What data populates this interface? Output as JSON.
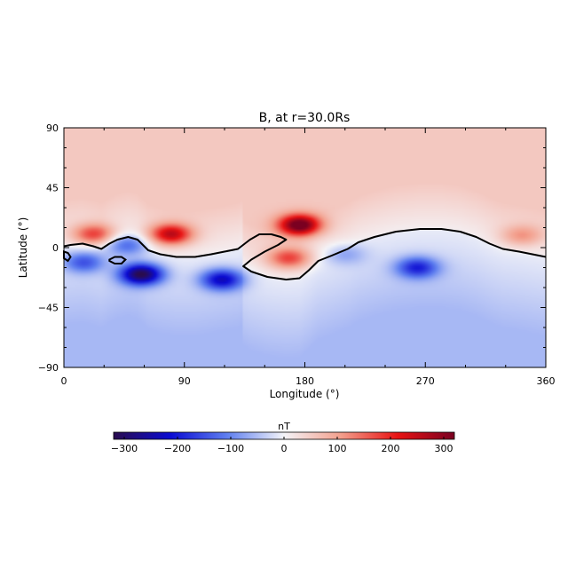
{
  "chart_data": {
    "type": "heatmap",
    "title": "B, at r=30.0Rs",
    "xlabel": "Longitude (°)",
    "ylabel": "Latitude (°)",
    "xlim": [
      0,
      360
    ],
    "ylim": [
      -90,
      90
    ],
    "xticks": [
      "0",
      "90",
      "180",
      "270",
      "360"
    ],
    "xtick_values": [
      0,
      90,
      180,
      270,
      360
    ],
    "yticks": [
      "90",
      "45",
      "0",
      "−45",
      "−90"
    ],
    "ytick_values": [
      90,
      45,
      0,
      -45,
      -90
    ],
    "colorbar": {
      "label": "nT",
      "range": [
        -320,
        320
      ],
      "ticks": [
        "−300",
        "−200",
        "−100",
        "0",
        "100",
        "200",
        "300"
      ],
      "tick_values": [
        -300,
        -200,
        -100,
        0,
        100,
        200,
        300
      ],
      "colormap": [
        "#2a0c4e",
        "#0b0bd2",
        "#5f7ff0",
        "#f4f4f8",
        "#f39f8c",
        "#e81313",
        "#7a0021"
      ]
    },
    "background": {
      "north": 55,
      "south": -55
    },
    "features": [
      {
        "lon": 22,
        "lat": 10,
        "value": 160
      },
      {
        "lon": 80,
        "lat": 10,
        "value": 230
      },
      {
        "lon": 176,
        "lat": 17,
        "value": 300
      },
      {
        "lon": 168,
        "lat": -8,
        "value": 150
      },
      {
        "lon": 342,
        "lat": 9,
        "value": 90
      },
      {
        "lon": 58,
        "lat": -20,
        "value": -300
      },
      {
        "lon": 15,
        "lat": -11,
        "value": -130
      },
      {
        "lon": 47,
        "lat": 2,
        "value": -110
      },
      {
        "lon": 118,
        "lat": -24,
        "value": -210
      },
      {
        "lon": 264,
        "lat": -15,
        "value": -170
      },
      {
        "lon": 210,
        "lat": -5,
        "value": -60
      }
    ],
    "zero_contour": [
      [
        0,
        1
      ],
      [
        5,
        2
      ],
      [
        14,
        3
      ],
      [
        22,
        1
      ],
      [
        28,
        -1
      ],
      [
        34,
        3
      ],
      [
        40,
        6
      ],
      [
        48,
        8
      ],
      [
        55,
        6
      ],
      [
        63,
        -2
      ],
      [
        72,
        -5
      ],
      [
        84,
        -7
      ],
      [
        98,
        -7
      ],
      [
        110,
        -5
      ],
      [
        120,
        -3
      ],
      [
        130,
        -1
      ],
      [
        139,
        6
      ],
      [
        146,
        10
      ],
      [
        155,
        10
      ],
      [
        162,
        8
      ],
      [
        166,
        6
      ],
      [
        160,
        2
      ],
      [
        150,
        -3
      ],
      [
        140,
        -9
      ],
      [
        134,
        -14
      ],
      [
        140,
        -18
      ],
      [
        152,
        -22
      ],
      [
        166,
        -24
      ],
      [
        176,
        -23
      ],
      [
        183,
        -17
      ],
      [
        190,
        -10
      ],
      [
        200,
        -6
      ],
      [
        212,
        -1
      ],
      [
        220,
        4
      ],
      [
        232,
        8
      ],
      [
        248,
        12
      ],
      [
        266,
        14
      ],
      [
        282,
        14
      ],
      [
        296,
        12
      ],
      [
        308,
        8
      ],
      [
        318,
        3
      ],
      [
        328,
        -1
      ],
      [
        340,
        -3
      ],
      [
        350,
        -5
      ],
      [
        360,
        -7
      ]
    ],
    "zero_contour_islands": [
      [
        [
          34,
          -9
        ],
        [
          38,
          -7
        ],
        [
          43,
          -7
        ],
        [
          46,
          -9
        ],
        [
          43,
          -12
        ],
        [
          38,
          -12
        ],
        [
          34,
          -10
        ]
      ],
      [
        [
          0,
          -3
        ],
        [
          3,
          -4
        ],
        [
          5,
          -7
        ],
        [
          3,
          -10
        ],
        [
          0,
          -8
        ]
      ]
    ]
  }
}
